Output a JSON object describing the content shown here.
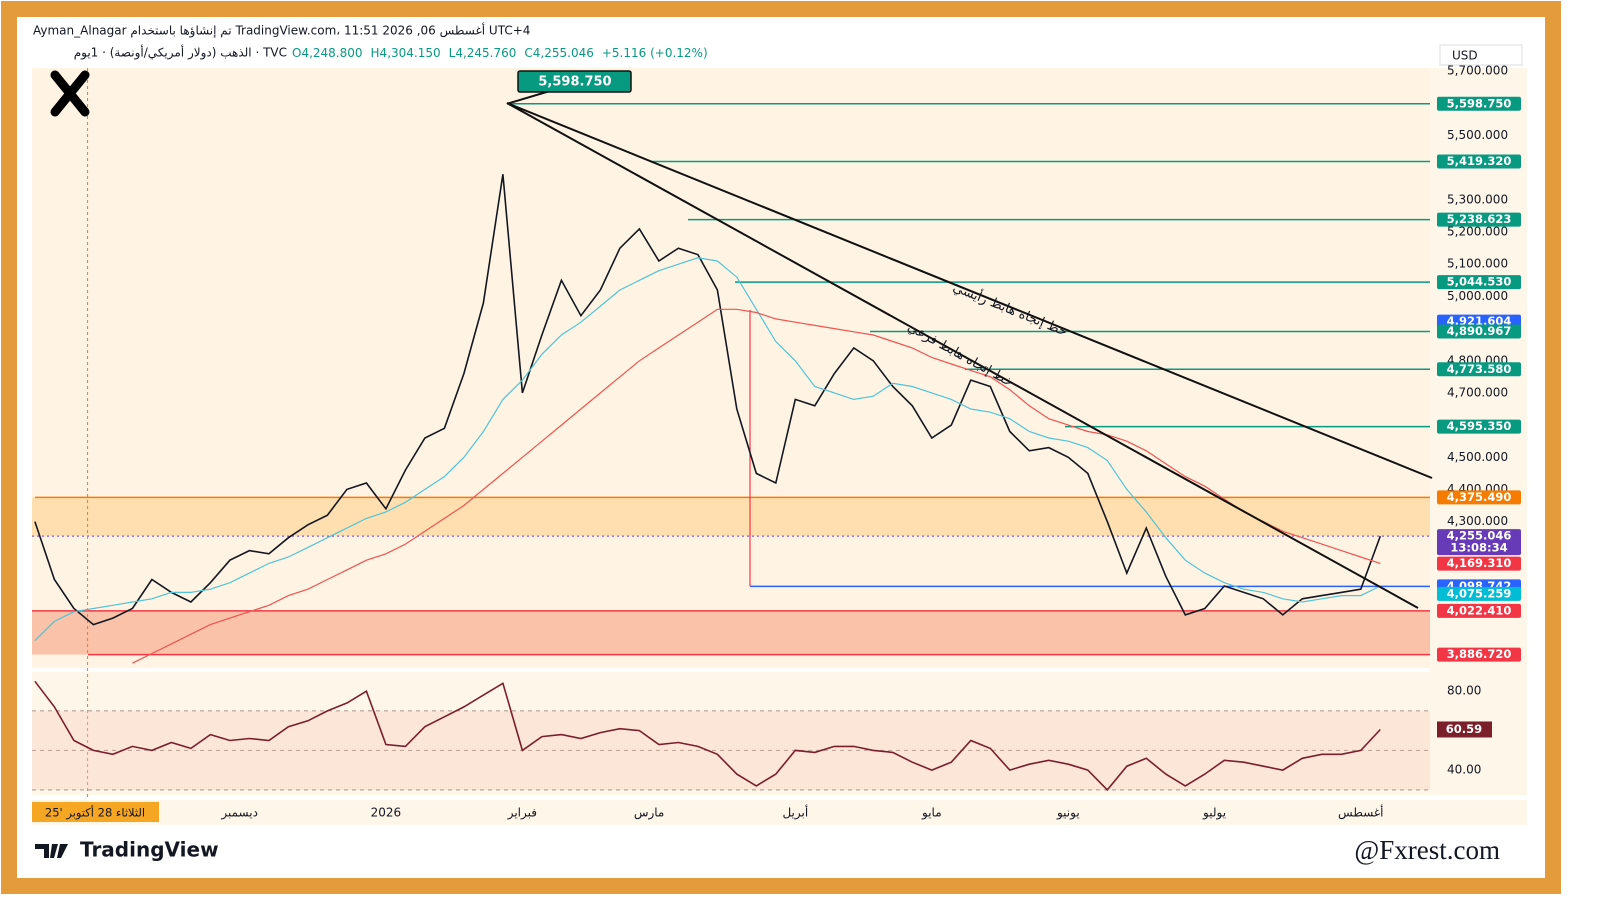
{
  "header": {
    "line1": "Ayman_Alnagar تم إنشاؤها باستخدام TradingView.com، 11:51 2026 ,06 أغسطس UTC+4",
    "symbol": "الذهب (دولار أمريكي/أونصة) · 1يوم · TVC",
    "ohlc": [
      "O4,248.800",
      "H4,304.150",
      "L4,245.760",
      "C4,255.046",
      "+5.116 (+0.12%)"
    ],
    "currency": "USD",
    "brand": "TradingView",
    "credit": "@Fxrest.com"
  },
  "chart_data": [
    {
      "type": "line",
      "xlim": [
        -0.15,
        71.55
      ],
      "xticks": [
        {
          "value": 10.5,
          "label": "ديسمبر"
        },
        {
          "value": 18,
          "label": "2026"
        },
        {
          "value": 25,
          "label": "فبراير"
        },
        {
          "value": 31.5,
          "label": "مارس"
        },
        {
          "value": 39,
          "label": "أبريل"
        },
        {
          "value": 46,
          "label": "مايو"
        },
        {
          "value": 53,
          "label": "يونيو"
        },
        {
          "value": 60.5,
          "label": "يوليو"
        },
        {
          "value": 68,
          "label": "أغسطس"
        }
      ],
      "crosshair": {
        "x": 2.7,
        "label": "الثلاثاء 28 أكتوبر '25"
      },
      "ylim": [
        3845,
        5710
      ],
      "yticks": [
        {
          "value": 4300,
          "label": "4,300.000"
        },
        {
          "value": 4400,
          "label": "4,400.000"
        },
        {
          "value": 4500,
          "label": "4,500.000"
        },
        {
          "value": 4700,
          "label": "4,700.000"
        },
        {
          "value": 4800,
          "label": "4,800.000"
        },
        {
          "value": 5000,
          "label": "5,000.000"
        },
        {
          "value": 5100,
          "label": "5,100.000"
        },
        {
          "value": 5200,
          "label": "5,200.000"
        },
        {
          "value": 5300,
          "label": "5,300.000"
        },
        {
          "value": 5500,
          "label": "5,500.000"
        },
        {
          "value": 5700,
          "label": "5,700.000"
        }
      ],
      "series": [
        {
          "name": "Price",
          "color": "#131722",
          "values": [
            4300,
            4120,
            4030,
            3980,
            4000,
            4030,
            4120,
            4080,
            4050,
            4110,
            4180,
            4210,
            4200,
            4250,
            4290,
            4320,
            4400,
            4420,
            4340,
            4460,
            4560,
            4590,
            4760,
            4980,
            5380,
            4700,
            4880,
            5050,
            4940,
            5020,
            5150,
            5210,
            5110,
            5150,
            5130,
            5020,
            4650,
            4450,
            4420,
            4680,
            4660,
            4760,
            4840,
            4800,
            4720,
            4660,
            4560,
            4600,
            4740,
            4720,
            4580,
            4520,
            4530,
            4500,
            4450,
            4300,
            4140,
            4280,
            4130,
            4010,
            4030,
            4100,
            4080,
            4060,
            4010,
            4060,
            4070,
            4080,
            4090,
            4255.046
          ]
        },
        {
          "name": "MA fast",
          "color": "#4fc3d9",
          "values": [
            3930,
            3990,
            4020,
            4030,
            4040,
            4050,
            4060,
            4080,
            4080,
            4090,
            4110,
            4140,
            4170,
            4190,
            4220,
            4250,
            4280,
            4310,
            4330,
            4360,
            4400,
            4440,
            4500,
            4580,
            4680,
            4740,
            4820,
            4880,
            4920,
            4970,
            5020,
            5050,
            5080,
            5100,
            5120,
            5110,
            5060,
            4960,
            4860,
            4800,
            4720,
            4700,
            4680,
            4690,
            4730,
            4720,
            4700,
            4680,
            4650,
            4640,
            4620,
            4580,
            4560,
            4550,
            4530,
            4490,
            4400,
            4330,
            4250,
            4180,
            4140,
            4110,
            4090,
            4080,
            4060,
            4050,
            4060,
            4070,
            4070,
            4100
          ]
        },
        {
          "name": "MA slow",
          "color": "#ef5350",
          "values": [
            null,
            null,
            null,
            null,
            null,
            3860,
            3890,
            3920,
            3950,
            3980,
            4000,
            4020,
            4040,
            4070,
            4090,
            4120,
            4150,
            4180,
            4200,
            4230,
            4270,
            4310,
            4350,
            4400,
            4450,
            4500,
            4550,
            4600,
            4650,
            4700,
            4750,
            4800,
            4840,
            4880,
            4920,
            4960,
            4960,
            4950,
            4930,
            4920,
            4910,
            4900,
            4890,
            4880,
            4860,
            4840,
            4810,
            4790,
            4770,
            4750,
            4710,
            4660,
            4620,
            4600,
            4580,
            4570,
            4550,
            4520,
            4480,
            4440,
            4410,
            4370,
            4330,
            4300,
            4270,
            4250,
            4230,
            4210,
            4190,
            4170
          ]
        }
      ],
      "levels": [
        {
          "value": 5598.75,
          "label": "5,598.750",
          "color": "#089981"
        },
        {
          "value": 5419.32,
          "label": "5,419.320",
          "color": "#089981"
        },
        {
          "value": 5238.623,
          "label": "5,238.623",
          "color": "#089981"
        },
        {
          "value": 5044.53,
          "label": "5,044.530",
          "color": "#089981"
        },
        {
          "value": 4921.604,
          "label": "4,921.604",
          "color": "#2962ff"
        },
        {
          "value": 4890.967,
          "label": "4,890.967",
          "color": "#089981"
        },
        {
          "value": 4773.58,
          "label": "4,773.580",
          "color": "#089981"
        },
        {
          "value": 4595.35,
          "label": "4,595.350",
          "color": "#089981"
        },
        {
          "value": 4375.49,
          "label": "4,375.490",
          "color": "#f57c00"
        },
        {
          "value": 4255.046,
          "label": "4,255.046",
          "color": "#673ab7"
        },
        {
          "value": 4169.31,
          "label": "4,169.310",
          "color": "#f23645"
        },
        {
          "value": 4098.742,
          "label": "4,098.742",
          "color": "#2962ff"
        },
        {
          "value": 4075.259,
          "label": "4,075.259",
          "color": "#00bcd4"
        },
        {
          "value": 4022.41,
          "label": "4,022.410",
          "color": "#f23645"
        },
        {
          "value": 3886.72,
          "label": "3,886.720",
          "color": "#f23645"
        }
      ],
      "countdown": "13:08:34",
      "annotations": [
        "خط إتجاه هابط رأيسي",
        "خط إتجاه هابط فرعي"
      ]
    },
    {
      "type": "line",
      "xlim": [
        -0.15,
        71.55
      ],
      "ylim": [
        27.4,
        89.7
      ],
      "yticks": [
        {
          "value": 40,
          "label": "40.00"
        },
        {
          "value": 80,
          "label": "80.00"
        }
      ],
      "bands": [
        30,
        50,
        70
      ],
      "series": [
        {
          "name": "RSI",
          "color": "#7b1f2b",
          "values": [
            85,
            72,
            55,
            50,
            48,
            52,
            50,
            54,
            51,
            58,
            55,
            56,
            55,
            62,
            65,
            70,
            74,
            80,
            53,
            52,
            62,
            67,
            72,
            78,
            84,
            50,
            57,
            58,
            56,
            59,
            61,
            60,
            53,
            54,
            52,
            48,
            38,
            32,
            38,
            50,
            49,
            52,
            52,
            50,
            49,
            44,
            40,
            44,
            55,
            51,
            40,
            43,
            45,
            43,
            40,
            30,
            42,
            46,
            38,
            32,
            38,
            45,
            44,
            42,
            40,
            46,
            48,
            48,
            50,
            60.59
          ],
          "value_labels": {
            "69": "60.59"
          }
        }
      ]
    }
  ]
}
